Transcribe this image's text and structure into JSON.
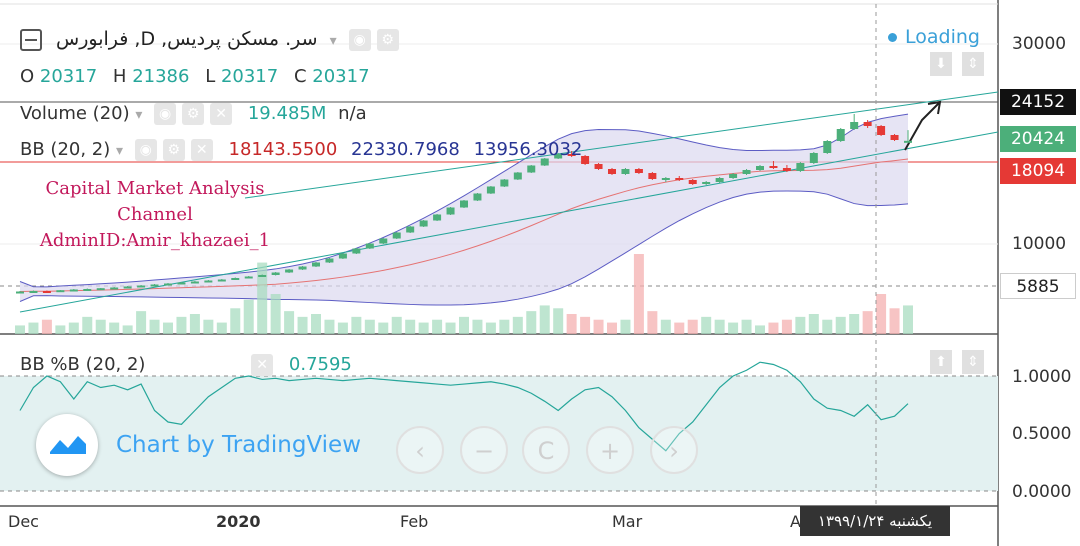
{
  "header": {
    "symbol_title": "فرابورس ,D ,سر. مسکن پردیس",
    "collapse_icon": "minus-square-icon",
    "ohlc": {
      "o_label": "O",
      "o": "20317",
      "h_label": "H",
      "h": "21386",
      "l_label": "L",
      "l": "20317",
      "c_label": "C",
      "c": "20317"
    },
    "loading": "Loading"
  },
  "volume_indicator": {
    "label": "Volume (20)",
    "value": "19.485M",
    "extra": "n/a"
  },
  "bb_indicator": {
    "label": "BB (20, 2)",
    "basis": "18143.5500",
    "upper": "22330.7968",
    "lower": "13956.3032"
  },
  "bbpct_indicator": {
    "label": "BB %B (20, 2)",
    "value": "0.7595"
  },
  "watermark": {
    "line1": "Capital Market Analysis",
    "line2": "Channel",
    "line3": "AdminID:Amir_khazaei_1"
  },
  "branding": {
    "text": "Chart by TradingView"
  },
  "nav": {
    "back": "‹",
    "zoom_out": "−",
    "reset": "C",
    "zoom_in": "+",
    "forward": "›"
  },
  "price_axis": {
    "labels": [
      "30000",
      "10000"
    ],
    "tags": [
      {
        "value": "24152",
        "color": "#000000"
      },
      {
        "value": "20424",
        "color": "#4caf7a"
      },
      {
        "value": "18094",
        "color": "#e53935"
      },
      {
        "value": "5885",
        "color": "#ffffff"
      }
    ]
  },
  "bbpct_axis": {
    "labels": [
      "1.0000",
      "0.5000",
      "0.0000"
    ]
  },
  "time_axis": {
    "labels": [
      "Dec",
      "2020",
      "Feb",
      "Mar",
      "A"
    ],
    "crosshair_date": "یکشنبه ۱۳۹۹/۱/۲۴"
  },
  "colors": {
    "up": "#4caf7a",
    "down": "#e53935",
    "bb_fill": "#dcd9ef",
    "bb_line": "#5c5cc4",
    "basis": "#e57373",
    "pct_fill": "#e3f1f1",
    "pct_line": "#26a69a"
  },
  "chart_data": {
    "type": "candlestick",
    "candles": [
      [
        5200,
        5300,
        5150,
        5250
      ],
      [
        5250,
        5350,
        5200,
        5300
      ],
      [
        5300,
        5350,
        5200,
        5280
      ],
      [
        5280,
        5400,
        5250,
        5380
      ],
      [
        5380,
        5500,
        5300,
        5450
      ],
      [
        5450,
        5550,
        5400,
        5500
      ],
      [
        5500,
        5600,
        5450,
        5580
      ],
      [
        5580,
        5700,
        5550,
        5650
      ],
      [
        5650,
        5800,
        5600,
        5750
      ],
      [
        5750,
        5900,
        5700,
        5850
      ],
      [
        5850,
        6000,
        5800,
        5950
      ],
      [
        5950,
        6100,
        5900,
        6050
      ],
      [
        6050,
        6200,
        6000,
        6150
      ],
      [
        6150,
        6300,
        6100,
        6250
      ],
      [
        6250,
        6400,
        6200,
        6350
      ],
      [
        6350,
        6500,
        6300,
        6450
      ],
      [
        6450,
        6650,
        6400,
        6600
      ],
      [
        6600,
        6800,
        6550,
        6750
      ],
      [
        6750,
        6950,
        6700,
        6900
      ],
      [
        6900,
        7200,
        6850,
        7150
      ],
      [
        7150,
        7500,
        7100,
        7450
      ],
      [
        7450,
        7800,
        7400,
        7750
      ],
      [
        7750,
        8200,
        7700,
        8150
      ],
      [
        8150,
        8600,
        8100,
        8550
      ],
      [
        8550,
        9100,
        8500,
        9050
      ],
      [
        9050,
        9600,
        9000,
        9550
      ],
      [
        9550,
        10100,
        9500,
        10050
      ],
      [
        10050,
        10600,
        10000,
        10550
      ],
      [
        10550,
        11200,
        10500,
        11150
      ],
      [
        11150,
        11800,
        11100,
        11750
      ],
      [
        11750,
        12400,
        11700,
        12350
      ],
      [
        12350,
        13000,
        12300,
        12950
      ],
      [
        12950,
        13700,
        12900,
        13650
      ],
      [
        13650,
        14400,
        13600,
        14350
      ],
      [
        14350,
        15100,
        14300,
        15050
      ],
      [
        15050,
        15800,
        15000,
        15750
      ],
      [
        15750,
        16500,
        15700,
        16450
      ],
      [
        16450,
        17200,
        16400,
        17150
      ],
      [
        17150,
        17900,
        17100,
        17850
      ],
      [
        17850,
        18600,
        17800,
        18550
      ],
      [
        18550,
        19100,
        18500,
        19000
      ],
      [
        19000,
        19300,
        18700,
        18800
      ],
      [
        18800,
        18900,
        17900,
        18000
      ],
      [
        18000,
        18100,
        17400,
        17500
      ],
      [
        17500,
        17600,
        16900,
        17000
      ],
      [
        17000,
        17600,
        16900,
        17500
      ],
      [
        17500,
        17600,
        17000,
        17100
      ],
      [
        17100,
        17200,
        16400,
        16500
      ],
      [
        16500,
        16700,
        16200,
        16600
      ],
      [
        16600,
        16800,
        16300,
        16400
      ],
      [
        16400,
        16500,
        15900,
        16000
      ],
      [
        16000,
        16300,
        15900,
        16200
      ],
      [
        16200,
        16700,
        16100,
        16600
      ],
      [
        16600,
        17100,
        16500,
        17000
      ],
      [
        17000,
        17500,
        16900,
        17400
      ],
      [
        17400,
        17900,
        17300,
        17800
      ],
      [
        17800,
        18300,
        17500,
        17600
      ],
      [
        17600,
        17900,
        17200,
        17300
      ],
      [
        17300,
        18200,
        17200,
        18100
      ],
      [
        18100,
        19200,
        18000,
        19100
      ],
      [
        19100,
        20400,
        19000,
        20300
      ],
      [
        20300,
        21600,
        20200,
        21500
      ],
      [
        21500,
        23000,
        21400,
        22200
      ],
      [
        22200,
        22400,
        21600,
        21800
      ],
      [
        21800,
        21900,
        20800,
        20900
      ],
      [
        20900,
        21000,
        20300,
        20400
      ],
      [
        20317,
        21386,
        20317,
        20317
      ]
    ],
    "volumes": [
      3,
      4,
      5,
      3,
      4,
      6,
      5,
      4,
      3,
      8,
      5,
      4,
      6,
      7,
      5,
      4,
      9,
      12,
      25,
      14,
      8,
      6,
      7,
      5,
      4,
      6,
      5,
      4,
      6,
      5,
      4,
      5,
      4,
      6,
      5,
      4,
      5,
      6,
      8,
      10,
      9,
      7,
      6,
      5,
      4,
      5,
      28,
      8,
      5,
      4,
      5,
      6,
      5,
      4,
      5,
      3,
      4,
      5,
      6,
      7,
      5,
      6,
      7,
      8,
      14,
      9,
      10
    ],
    "bbpct": [
      0.7,
      0.9,
      1.0,
      0.95,
      0.8,
      0.95,
      0.9,
      0.92,
      0.88,
      0.93,
      0.7,
      0.6,
      0.58,
      0.7,
      0.82,
      0.9,
      0.98,
      1.0,
      0.97,
      0.98,
      0.96,
      0.97,
      0.98,
      0.97,
      0.96,
      0.97,
      0.98,
      0.97,
      0.96,
      0.95,
      0.94,
      0.93,
      0.92,
      0.93,
      0.94,
      0.95,
      0.93,
      0.9,
      0.85,
      0.78,
      0.7,
      0.8,
      0.88,
      0.9,
      0.82,
      0.7,
      0.55,
      0.45,
      0.35,
      0.5,
      0.6,
      0.75,
      0.9,
      1.0,
      1.05,
      1.12,
      1.1,
      1.05,
      0.95,
      0.8,
      0.72,
      0.7,
      0.65,
      0.75,
      0.62,
      0.65,
      0.7595
    ],
    "ylim": [
      0,
      33000
    ]
  }
}
